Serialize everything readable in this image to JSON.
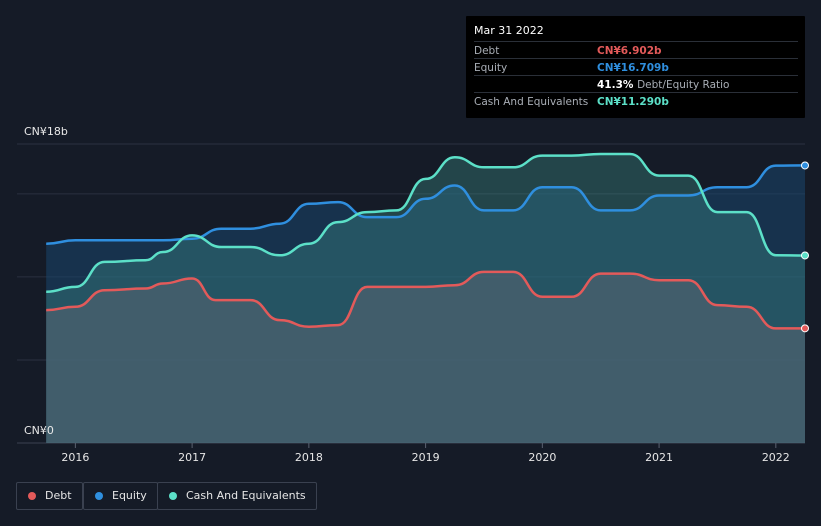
{
  "chart_data": {
    "type": "area",
    "y_axis": {
      "top_label": "CN¥18b",
      "bottom_label": "CN¥0",
      "ylim": [
        0,
        18
      ]
    },
    "x_axis": {
      "ticks": [
        2016,
        2017,
        2018,
        2019,
        2020,
        2021,
        2022
      ],
      "xlim": [
        2015.5,
        2022.25
      ]
    },
    "series": [
      {
        "name": "Debt",
        "color": "#e35a5a",
        "x": [
          2015.75,
          2016.0,
          2016.25,
          2016.6,
          2016.75,
          2017.0,
          2017.2,
          2017.5,
          2017.75,
          2018.0,
          2018.25,
          2018.5,
          2018.75,
          2019.0,
          2019.25,
          2019.5,
          2019.75,
          2020.0,
          2020.25,
          2020.5,
          2020.75,
          2021.0,
          2021.25,
          2021.5,
          2021.75,
          2022.0,
          2022.25
        ],
        "values": [
          8.0,
          8.2,
          9.2,
          9.3,
          9.6,
          9.9,
          8.6,
          8.6,
          7.4,
          7.0,
          7.1,
          9.4,
          9.4,
          9.4,
          9.5,
          10.3,
          10.3,
          8.8,
          8.8,
          10.2,
          10.2,
          9.8,
          9.8,
          8.3,
          8.2,
          6.9,
          6.902
        ]
      },
      {
        "name": "Equity",
        "color": "#2f8fdf",
        "x": [
          2015.75,
          2016.0,
          2016.25,
          2016.6,
          2016.75,
          2017.0,
          2017.25,
          2017.5,
          2017.75,
          2018.0,
          2018.25,
          2018.5,
          2018.75,
          2019.0,
          2019.25,
          2019.5,
          2019.75,
          2020.0,
          2020.25,
          2020.5,
          2020.75,
          2021.0,
          2021.25,
          2021.5,
          2021.75,
          2022.0,
          2022.25
        ],
        "values": [
          12.0,
          12.2,
          12.2,
          12.2,
          12.2,
          12.3,
          12.9,
          12.9,
          13.2,
          14.4,
          14.5,
          13.6,
          13.6,
          14.7,
          15.5,
          14.0,
          14.0,
          15.4,
          15.4,
          14.0,
          14.0,
          14.9,
          14.9,
          15.4,
          15.4,
          16.7,
          16.709
        ]
      },
      {
        "name": "Cash And Equivalents",
        "color": "#5ce0c8",
        "x": [
          2015.75,
          2016.0,
          2016.25,
          2016.6,
          2016.75,
          2017.0,
          2017.25,
          2017.5,
          2017.75,
          2018.0,
          2018.25,
          2018.5,
          2018.75,
          2019.0,
          2019.25,
          2019.5,
          2019.75,
          2020.0,
          2020.25,
          2020.5,
          2020.75,
          2021.0,
          2021.25,
          2021.5,
          2021.75,
          2022.0,
          2022.25
        ],
        "values": [
          9.1,
          9.4,
          10.9,
          11.0,
          11.5,
          12.5,
          11.8,
          11.8,
          11.3,
          12.0,
          13.3,
          13.9,
          14.0,
          15.9,
          17.2,
          16.6,
          16.6,
          17.3,
          17.3,
          17.4,
          17.4,
          16.1,
          16.1,
          13.9,
          13.9,
          11.3,
          11.29
        ]
      }
    ],
    "grid": true,
    "legend": "bottom-left"
  },
  "tooltip": {
    "date": "Mar 31 2022",
    "rows": [
      {
        "label": "Debt",
        "value": "CN¥6.902b",
        "color": "#e35a5a"
      },
      {
        "label": "Equity",
        "value": "CN¥16.709b",
        "color": "#2f8fdf"
      },
      {
        "label": "",
        "value": "41.3%",
        "suffix": "Debt/Equity Ratio",
        "color": "#ffffff"
      },
      {
        "label": "Cash And Equivalents",
        "value": "CN¥11.290b",
        "color": "#5ce0c8"
      }
    ]
  },
  "legend": [
    {
      "label": "Debt",
      "color": "#e35a5a"
    },
    {
      "label": "Equity",
      "color": "#2f8fdf"
    },
    {
      "label": "Cash And Equivalents",
      "color": "#5ce0c8"
    }
  ]
}
